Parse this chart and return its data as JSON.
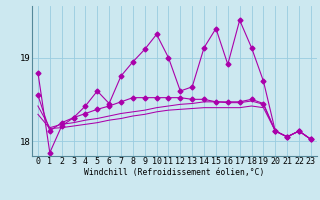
{
  "xlabel": "Windchill (Refroidissement éolien,°C)",
  "bg_color": "#cce8f0",
  "line_color": "#aa00aa",
  "grid_color": "#99cce0",
  "ylim": [
    17.82,
    19.62
  ],
  "xlim": [
    -0.5,
    23.5
  ],
  "yticks": [
    18,
    19
  ],
  "xticks": [
    0,
    1,
    2,
    3,
    4,
    5,
    6,
    7,
    8,
    9,
    10,
    11,
    12,
    13,
    14,
    15,
    16,
    17,
    18,
    19,
    20,
    21,
    22,
    23
  ],
  "series1": [
    18.82,
    17.86,
    18.18,
    18.28,
    18.42,
    18.6,
    18.45,
    18.78,
    18.95,
    19.1,
    19.28,
    19.0,
    18.6,
    18.65,
    19.12,
    19.35,
    18.92,
    19.45,
    19.12,
    18.72,
    18.12,
    18.05,
    18.12,
    18.02
  ],
  "series2": [
    18.55,
    18.12,
    18.22,
    18.28,
    18.33,
    18.38,
    18.42,
    18.47,
    18.52,
    18.52,
    18.52,
    18.52,
    18.52,
    18.5,
    18.5,
    18.47,
    18.47,
    18.47,
    18.5,
    18.45,
    18.12,
    18.05,
    18.12,
    18.02
  ],
  "series3": [
    18.42,
    18.16,
    18.2,
    18.22,
    18.25,
    18.27,
    18.3,
    18.33,
    18.35,
    18.37,
    18.4,
    18.42,
    18.44,
    18.45,
    18.47,
    18.47,
    18.46,
    18.46,
    18.48,
    18.44,
    18.12,
    18.05,
    18.12,
    18.02
  ],
  "series4": [
    18.32,
    18.15,
    18.16,
    18.18,
    18.2,
    18.22,
    18.25,
    18.27,
    18.3,
    18.32,
    18.35,
    18.37,
    18.38,
    18.39,
    18.4,
    18.4,
    18.4,
    18.4,
    18.42,
    18.4,
    18.12,
    18.05,
    18.12,
    18.02
  ],
  "xlabel_fontsize": 5.8,
  "tick_fontsize": 6.0
}
